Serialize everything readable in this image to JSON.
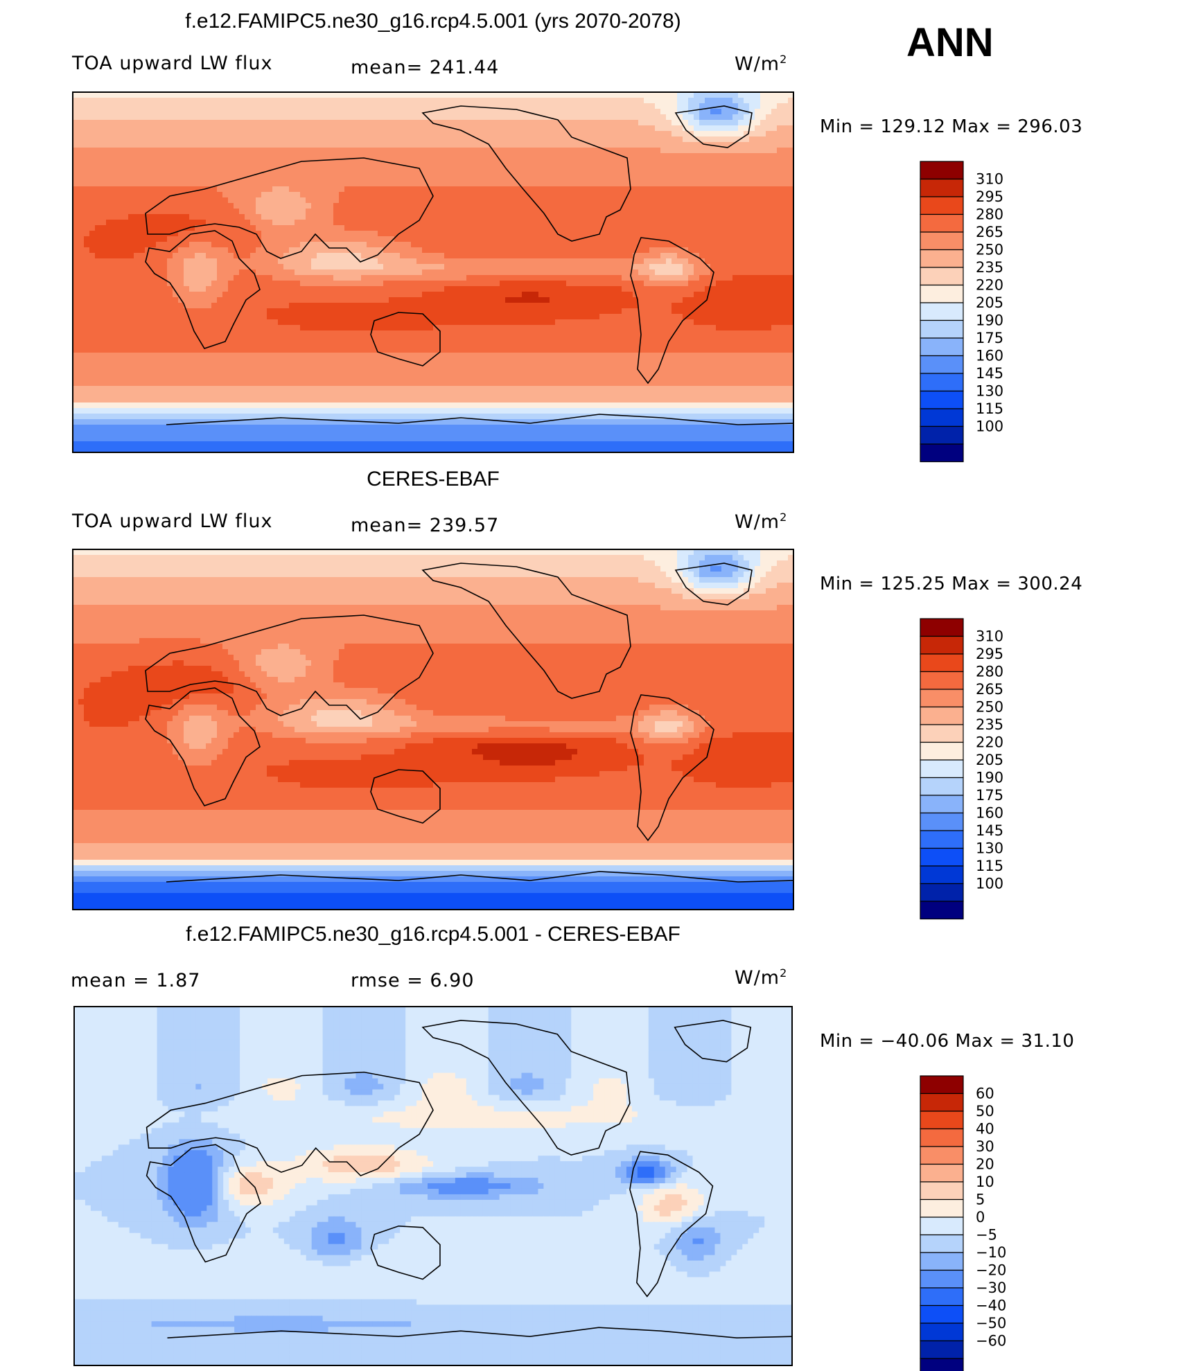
{
  "season": "ANN",
  "colors": {
    "abs_scale": [
      "#00007f",
      "#0022aa",
      "#0038d6",
      "#0d4ff7",
      "#2e6ef9",
      "#5a90f9",
      "#89b3fa",
      "#b5d3fb",
      "#d8eafd",
      "#fdeedf",
      "#fcd1b9",
      "#fbb08f",
      "#f98e67",
      "#f46a3f",
      "#e9481b",
      "#c72707",
      "#8e0000"
    ],
    "diff_scale": [
      "#00007f",
      "#0022aa",
      "#0038d6",
      "#0d4ff7",
      "#2e6ef9",
      "#5a90f9",
      "#89b3fa",
      "#b5d3fb",
      "#d8eafd",
      "#fdeedf",
      "#fcd1b9",
      "#fbb08f",
      "#f98e67",
      "#f46a3f",
      "#e9481b",
      "#c72707",
      "#8e0000"
    ]
  },
  "panels": [
    {
      "title": "f.e12.FAMIPC5.ne30_g16.rcp4.5.001 (yrs 2070-2078)",
      "left_label": "TOA upward LW flux",
      "mean_label": "mean=  241.44",
      "units": "W/m",
      "units_sup": "2",
      "minmax": "Min  =  129.12  Max  =  296.03",
      "levels": [
        "310",
        "295",
        "280",
        "265",
        "250",
        "235",
        "220",
        "205",
        "190",
        "175",
        "160",
        "145",
        "130",
        "115",
        "100"
      ],
      "field": "model"
    },
    {
      "title": "CERES-EBAF",
      "left_label": "TOA upward LW flux",
      "mean_label": "mean=  239.57",
      "units": "W/m",
      "units_sup": "2",
      "minmax": "Min  =  125.25  Max  =  300.24",
      "levels": [
        "310",
        "295",
        "280",
        "265",
        "250",
        "235",
        "220",
        "205",
        "190",
        "175",
        "160",
        "145",
        "130",
        "115",
        "100"
      ],
      "field": "obs"
    },
    {
      "title": "f.e12.FAMIPC5.ne30_g16.rcp4.5.001 - CERES-EBAF",
      "left_label": "mean  =     1.87",
      "mean_label": "rmse  =     6.90",
      "units": "W/m",
      "units_sup": "2",
      "minmax": "Min  =  −40.06  Max  =    31.10",
      "levels": [
        "60",
        "50",
        "40",
        "30",
        "20",
        "10",
        "5",
        "0",
        "−5",
        "−10",
        "−20",
        "−30",
        "−40",
        "−50",
        "−60"
      ],
      "field": "diff"
    }
  ]
}
